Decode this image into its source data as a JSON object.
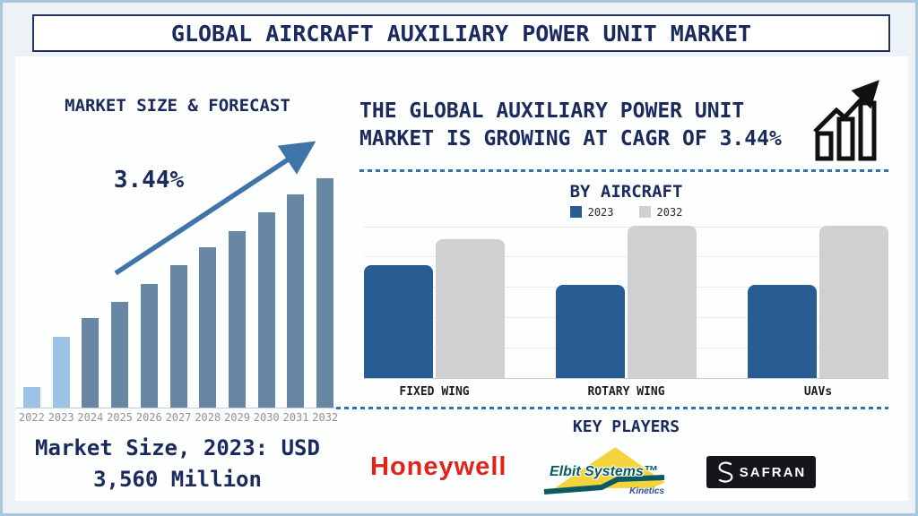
{
  "title": "GLOBAL AIRCRAFT AUXILIARY POWER UNIT MARKET",
  "colors": {
    "navy_text": "#1b2a5c",
    "page_background": "#edf2f7",
    "outer_border": "#a9c8dd",
    "divider_blue": "#2e74b5",
    "forecast_bar": "#6787a5",
    "forecast_highlight_bar": "#9cc3e5",
    "trend_arrow": "#3e74a8",
    "bar_2023": "#275d92",
    "bar_2032": "#d0d0d2",
    "honeywell_red": "#e2231a",
    "elbit_teal": "#0a5a62",
    "elbit_yellow": "#f3d43c",
    "elbit_kinetics_blue": "#2b4ea3",
    "safran_box": "#15151d"
  },
  "left": {
    "heading": "MARKET SIZE & FORECAST",
    "cagr_label": "3.44%",
    "caption_line1": "Market Size, 2023: USD",
    "caption_line2": "3,560 Million"
  },
  "right": {
    "headline_line1": "THE GLOBAL AUXILIARY POWER UNIT",
    "headline_line2": "MARKET IS GROWING AT CAGR OF 3.44%",
    "by_aircraft_title": "BY AIRCRAFT",
    "key_players_title": "KEY PLAYERS"
  },
  "key_players": {
    "honeywell": "Honeywell",
    "elbit": "Elbit Systems™",
    "elbit_sub": "Kinetics",
    "safran": "SAFRAN"
  },
  "chart_data": [
    {
      "id": "market-size-forecast",
      "type": "bar",
      "title": "MARKET SIZE & FORECAST",
      "categories": [
        "2022",
        "2023",
        "2024",
        "2025",
        "2026",
        "2027",
        "2028",
        "2029",
        "2030",
        "2031",
        "2032"
      ],
      "values_relative_pct": [
        9,
        31,
        39,
        46,
        54,
        62,
        70,
        77,
        85,
        93,
        100
      ],
      "highlight_categories": [
        "2022",
        "2023"
      ],
      "bar_color": "#6787a5",
      "highlight_color": "#9cc3e5",
      "annotation": "3.44%",
      "labeled_value": "Market Size, 2023: USD 3,560 Million",
      "xlabel": "",
      "ylabel": "",
      "value_axis_labels": false,
      "grid": false
    },
    {
      "id": "by-aircraft",
      "type": "grouped-bar",
      "title": "BY AIRCRAFT",
      "categories": [
        "FIXED WING",
        "ROTARY WING",
        "UAVs"
      ],
      "series": [
        {
          "name": "2023",
          "color": "#275d92",
          "values_relative_pct": [
            74,
            61,
            61
          ]
        },
        {
          "name": "2032",
          "color": "#d0d0d2",
          "values_relative_pct": [
            91,
            100,
            100
          ]
        }
      ],
      "xlabel": "",
      "ylabel": "",
      "value_axis_labels": false,
      "grid": true,
      "legend_position": "top"
    }
  ]
}
